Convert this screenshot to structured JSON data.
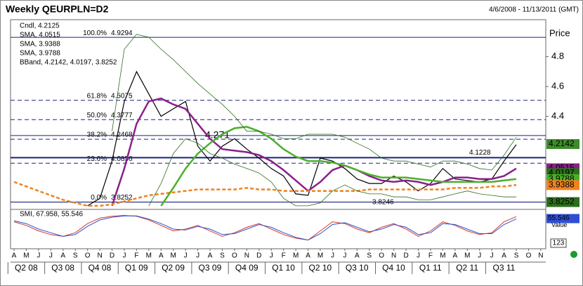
{
  "chart_data": {
    "type": "line",
    "title": "Weekly QEURPLN=D2",
    "subtitle": "4/6/2008 - 11/13/2011 (GMT)",
    "ylabel": "Price",
    "ylim": [
      3.776,
      5.048
    ],
    "yticks": [
      4.4,
      4.6,
      4.8
    ],
    "categories": [
      "A",
      "M",
      "J",
      "J",
      "A",
      "S",
      "O",
      "N",
      "D",
      "J",
      "F",
      "M",
      "A",
      "M",
      "J",
      "J",
      "A",
      "S",
      "O",
      "N",
      "D",
      "J",
      "F",
      "M",
      "A",
      "M",
      "J",
      "J",
      "A",
      "S",
      "O",
      "N",
      "D",
      "J",
      "F",
      "M",
      "A",
      "M",
      "J",
      "J",
      "A",
      "S",
      "O",
      "N"
    ],
    "quarters": [
      "Q2 08",
      "Q3 08",
      "Q4 08",
      "Q1 09",
      "Q2 09",
      "Q3 09",
      "Q4 09",
      "Q1 10",
      "Q2 10",
      "Q3 10",
      "Q4 10",
      "Q1 11",
      "Q2 11",
      "Q3 11"
    ],
    "series": [
      {
        "name": "Cndl, 4.2125",
        "color": "#000000",
        "values": [
          null,
          null,
          null,
          null,
          null,
          null,
          3.8,
          3.85,
          4.1,
          4.5,
          4.7,
          4.55,
          4.4,
          4.45,
          4.5,
          4.2,
          4.1,
          4.2,
          4.25,
          4.18,
          4.12,
          4.05,
          4.0,
          3.88,
          3.87,
          4.12,
          4.1,
          4.05,
          3.98,
          3.95,
          3.95,
          4.0,
          3.96,
          3.9,
          3.95,
          4.05,
          3.98,
          3.97,
          3.96,
          3.98,
          4.1,
          4.21,
          null,
          null
        ]
      },
      {
        "name": "SMA, 4.0515",
        "color": "#8b1f8b",
        "width": 2.5,
        "values": [
          null,
          null,
          null,
          null,
          null,
          null,
          null,
          null,
          3.8,
          4.05,
          4.35,
          4.5,
          4.52,
          4.48,
          4.45,
          4.35,
          4.25,
          4.18,
          4.17,
          4.16,
          4.14,
          4.1,
          4.04,
          3.97,
          3.9,
          3.96,
          4.04,
          4.07,
          4.04,
          4.0,
          3.97,
          3.96,
          3.97,
          3.96,
          3.94,
          3.96,
          3.99,
          3.99,
          3.98,
          3.98,
          4.0,
          4.05,
          null,
          null
        ]
      },
      {
        "name": "SMA, 3.9388",
        "color": "#f0821e",
        "width": 2.5,
        "dash": true,
        "values": [
          3.96,
          3.93,
          3.9,
          3.87,
          3.84,
          3.82,
          3.8,
          3.8,
          3.81,
          3.83,
          3.85,
          3.87,
          3.88,
          3.89,
          3.9,
          3.91,
          3.91,
          3.91,
          3.91,
          3.92,
          3.91,
          3.91,
          3.9,
          3.9,
          3.9,
          3.9,
          3.9,
          3.9,
          3.9,
          3.91,
          3.91,
          3.91,
          3.91,
          3.91,
          3.91,
          3.91,
          3.92,
          3.92,
          3.92,
          3.93,
          3.93,
          3.94,
          null,
          null
        ]
      },
      {
        "name": "SMA, 3.9788",
        "color": "#4caf2a",
        "width": 2.5,
        "values": [
          null,
          null,
          null,
          null,
          null,
          null,
          null,
          null,
          null,
          null,
          null,
          null,
          3.8,
          3.92,
          4.05,
          4.15,
          4.22,
          4.28,
          4.32,
          4.33,
          4.3,
          4.25,
          4.18,
          4.13,
          4.1,
          4.1,
          4.09,
          4.07,
          4.04,
          4.01,
          3.99,
          3.99,
          3.99,
          3.98,
          3.97,
          3.96,
          3.96,
          3.96,
          3.96,
          3.96,
          3.97,
          3.98,
          null,
          null
        ]
      },
      {
        "name": "BBand, 4.2142, 4.0197, 3.8252",
        "color": "#2e6e1e",
        "width": 0.8,
        "values": [
          null,
          null,
          null,
          null,
          null,
          null,
          null,
          null,
          4.3,
          4.85,
          4.95,
          4.93,
          4.85,
          4.78,
          4.7,
          4.62,
          4.55,
          4.48,
          4.4,
          4.3,
          4.3,
          4.28,
          4.25,
          4.25,
          4.28,
          4.28,
          4.28,
          4.26,
          4.22,
          4.18,
          4.12,
          4.1,
          4.1,
          4.08,
          4.06,
          4.1,
          4.1,
          4.08,
          4.05,
          4.04,
          4.14,
          4.26,
          null,
          null
        ],
        "lower": [
          null,
          null,
          null,
          null,
          null,
          null,
          null,
          null,
          null,
          null,
          null,
          3.8,
          3.95,
          4.15,
          4.25,
          4.22,
          4.15,
          4.12,
          4.08,
          4.05,
          4.02,
          3.96,
          3.85,
          3.8,
          3.8,
          3.82,
          3.9,
          3.94,
          3.9,
          3.88,
          3.88,
          3.86,
          3.86,
          3.84,
          3.84,
          3.86,
          3.88,
          3.9,
          3.88,
          3.87,
          3.86,
          3.86,
          null,
          null
        ]
      }
    ],
    "fib_levels": [
      {
        "pct": "100.0%",
        "value": 4.9294,
        "dash": false
      },
      {
        "pct": "61.8%",
        "value": 4.5075,
        "dash": true
      },
      {
        "pct": "50.0%",
        "value": 4.3777,
        "dash": true
      },
      {
        "pct": "38.2%",
        "value": 4.2468,
        "dash": true
      },
      {
        "pct": "23.6%",
        "value": 4.0856,
        "dash": true
      },
      {
        "pct": "0.0%",
        "value": 3.8252,
        "dash": false
      }
    ],
    "levels": [
      4.271,
      4.1228,
      3.8246
    ],
    "price_tags": [
      {
        "value": 4.2142,
        "color": "#3c8c2c"
      },
      {
        "value": 4.0515,
        "color": "#8b1f8b"
      },
      {
        "value": 4.0197,
        "color": "#2e6e1e"
      },
      {
        "value": 3.9788,
        "color": "#4caf2a"
      },
      {
        "value": 3.9388,
        "color": "#f0821e"
      },
      {
        "value": 3.8252,
        "color": "#2e6e1e"
      }
    ],
    "smi": {
      "name": "SMI, 67.958, 55.546",
      "ylim": [
        -100,
        100
      ],
      "tag": 55.546,
      "tag_label": "Value",
      "box_label": "123",
      "series": [
        {
          "color": "#d43a2a",
          "values": [
            40,
            20,
            -10,
            -30,
            -40,
            -20,
            30,
            60,
            70,
            75,
            70,
            50,
            20,
            -10,
            0,
            20,
            -10,
            -40,
            -20,
            10,
            30,
            0,
            -30,
            -50,
            -60,
            -10,
            40,
            30,
            0,
            -20,
            10,
            30,
            0,
            -40,
            -10,
            40,
            20,
            -10,
            -30,
            -20,
            40,
            67.958,
            null,
            null
          ]
        },
        {
          "color": "#2f4fd0",
          "values": [
            45,
            30,
            0,
            -20,
            -40,
            -30,
            15,
            50,
            65,
            72,
            72,
            55,
            30,
            0,
            -5,
            15,
            0,
            -30,
            -25,
            0,
            25,
            10,
            -20,
            -45,
            -60,
            -25,
            25,
            35,
            10,
            -15,
            0,
            25,
            10,
            -30,
            -20,
            30,
            25,
            0,
            -25,
            -25,
            25,
            55.546,
            null,
            null
          ]
        }
      ]
    }
  }
}
